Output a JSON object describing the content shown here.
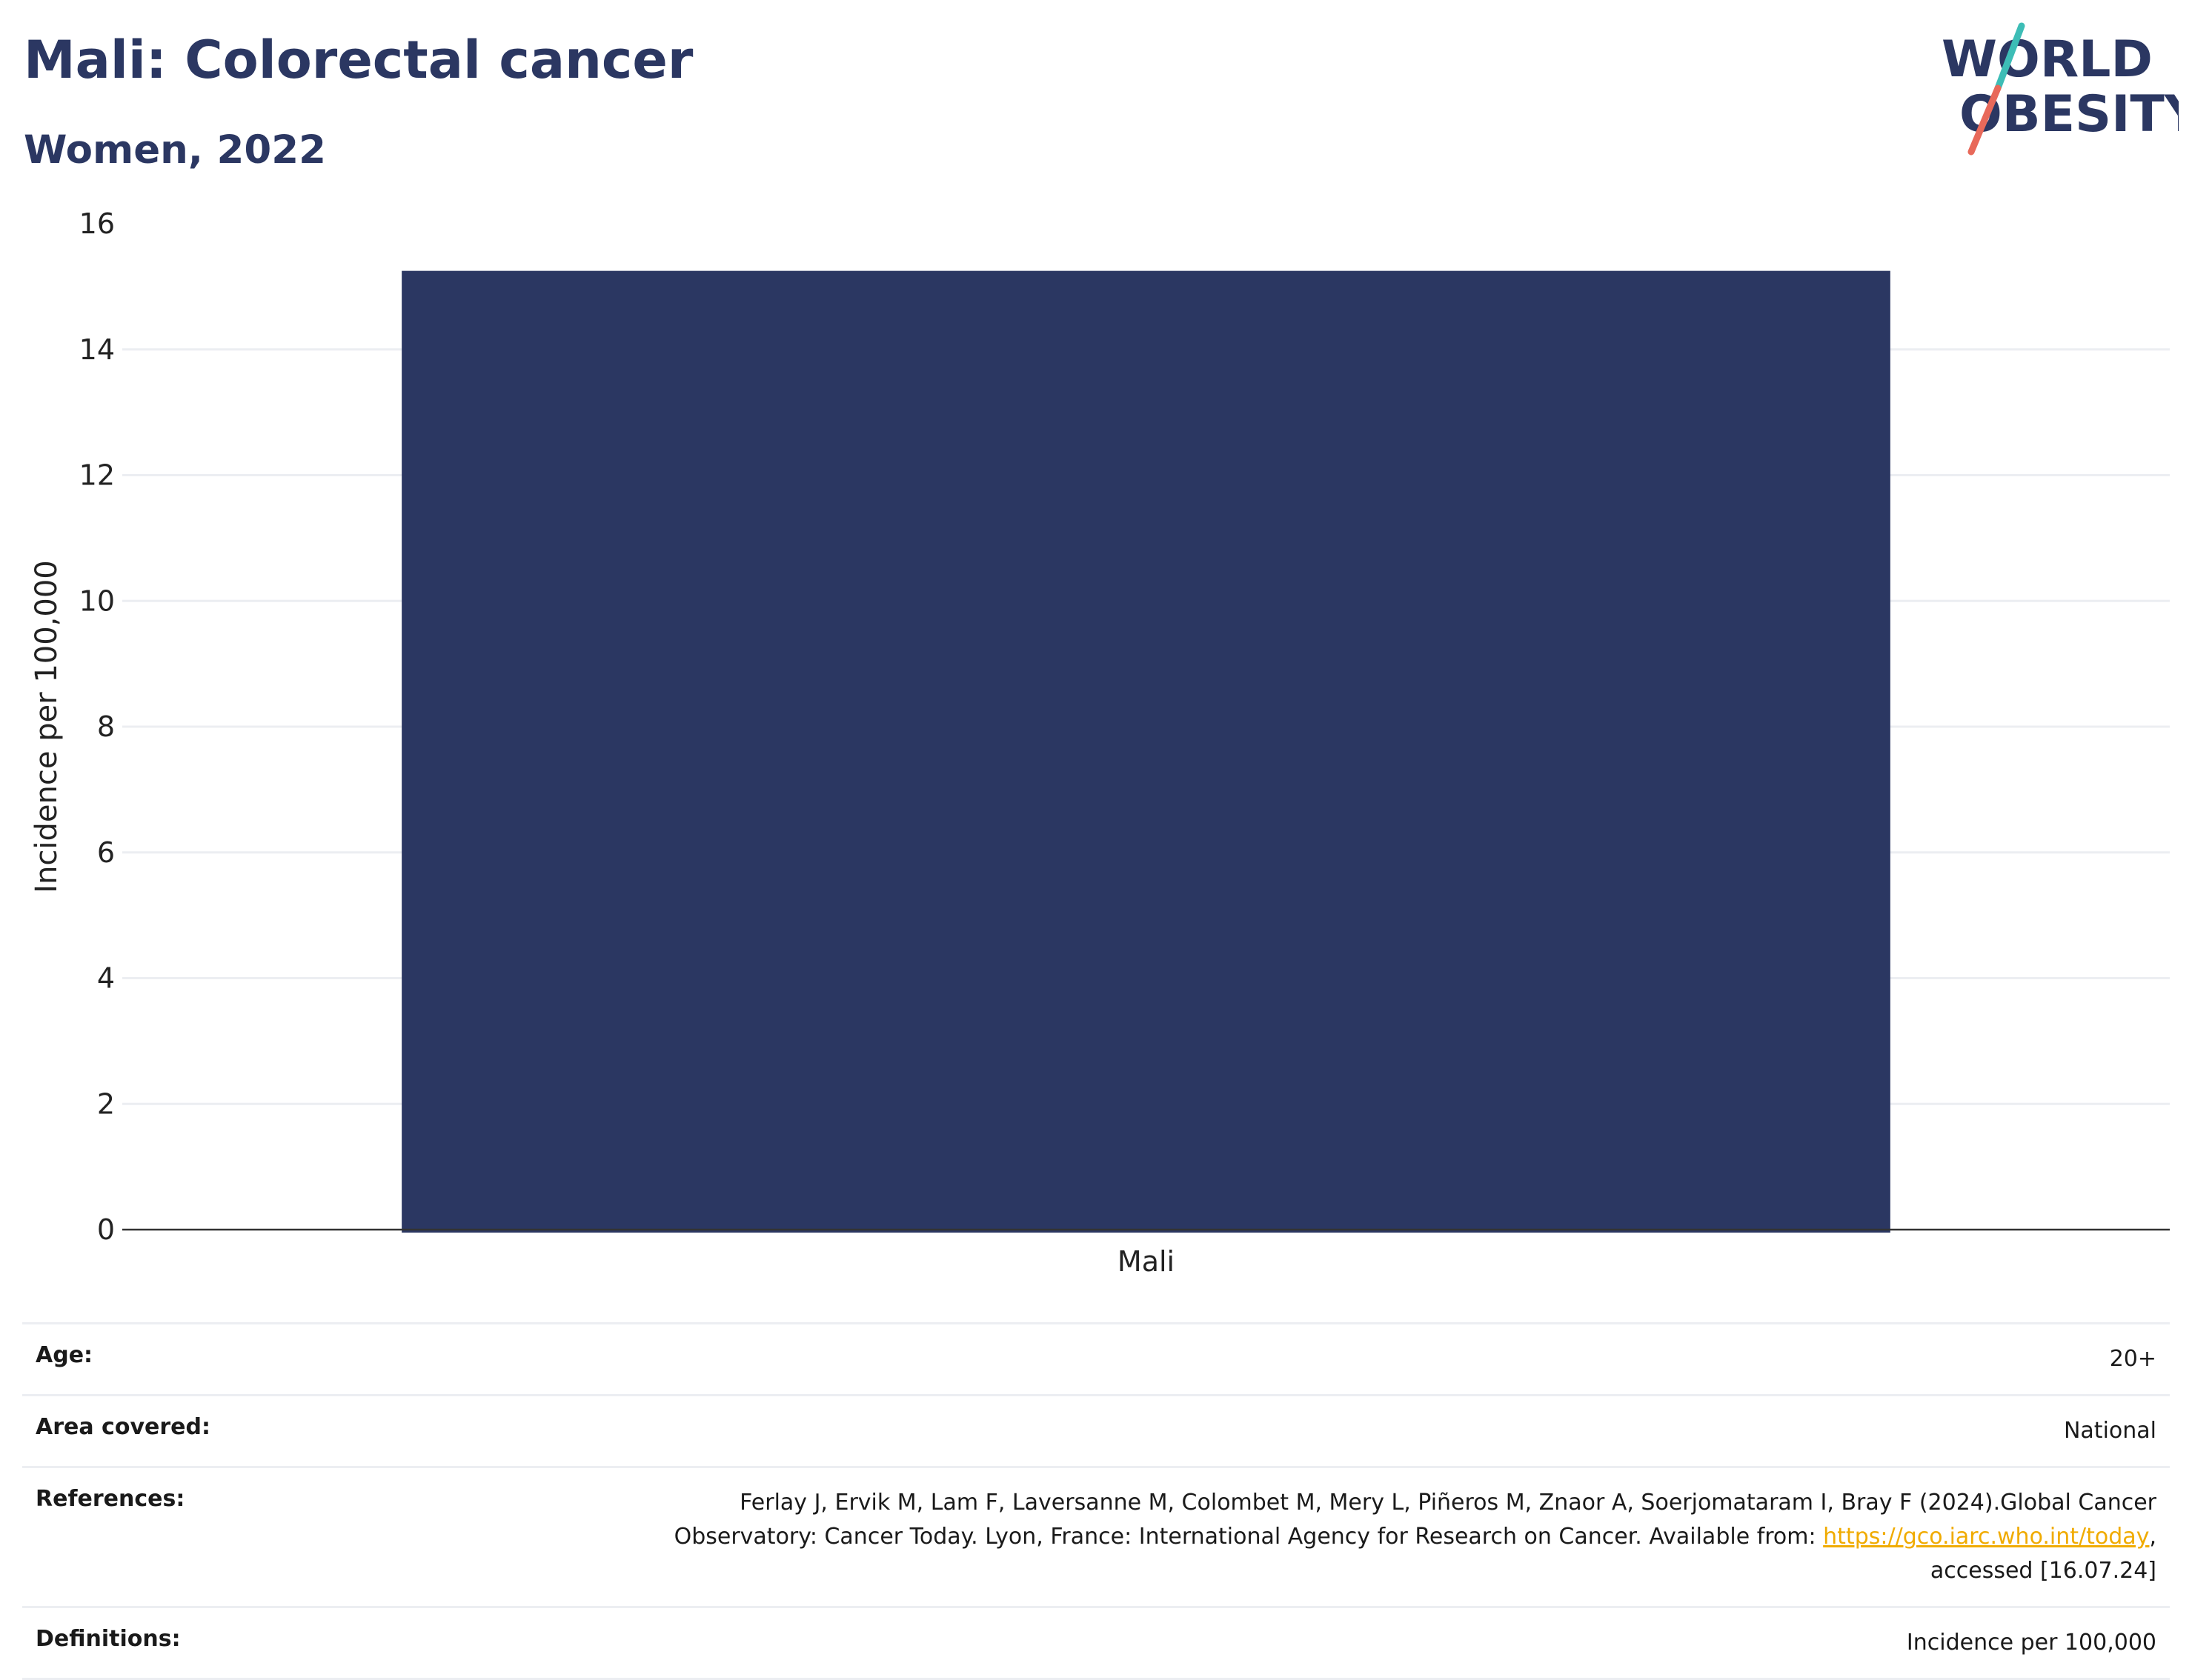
{
  "header": {
    "title": "Mali: Colorectal cancer",
    "subtitle": "Women, 2022"
  },
  "logo": {
    "line1": "WORLD",
    "line2": "OBESITY",
    "accent_teal": "#3dbdb6",
    "accent_coral": "#e8695a",
    "text_color": "#2b3762"
  },
  "chart_data": {
    "type": "bar",
    "categories": [
      "Mali"
    ],
    "values": [
      15.25
    ],
    "title": "Mali: Colorectal cancer",
    "subtitle": "Women, 2022",
    "xlabel": "",
    "ylabel": "Incidence per 100,000",
    "ylim": [
      0,
      16
    ],
    "yticks": [
      0,
      2,
      4,
      6,
      8,
      10,
      12,
      14,
      16
    ],
    "grid": true,
    "legend": "none",
    "bar_color": "#2b3762"
  },
  "info": {
    "age_label": "Age:",
    "age_value": "20+",
    "area_label": "Area covered:",
    "area_value": "National",
    "references_label": "References:",
    "references_line1": "Ferlay J, Ervik M, Lam F, Laversanne M, Colombet M, Mery L, Piñeros M, Znaor A, Soerjomataram I, Bray F (2024).Global Cancer",
    "references_line2": "Observatory: Cancer Today. Lyon, France: International Agency for Research on Cancer. Available from: ",
    "references_link": "https://gco.iarc.who.int/today",
    "references_line3": "accessed [16.07.24]",
    "definitions_label": "Definitions:",
    "definitions_value": "Incidence per 100,000"
  }
}
